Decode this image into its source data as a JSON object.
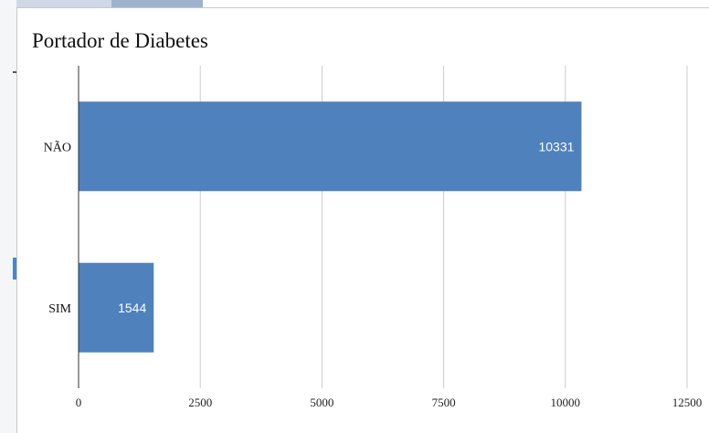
{
  "chart_data": {
    "type": "bar",
    "orientation": "horizontal",
    "title": "Portador de Diabetes",
    "categories": [
      "NÃO",
      "SIM"
    ],
    "values": [
      10331,
      1544
    ],
    "data_labels": [
      "10331",
      "1544"
    ],
    "xlim": [
      0,
      12500
    ],
    "x_ticks": [
      0,
      2500,
      5000,
      7500,
      10000,
      12500
    ],
    "x_tick_labels": [
      "0",
      "2500",
      "5000",
      "7500",
      "10000",
      "12500"
    ],
    "xlabel": "",
    "ylabel": "",
    "grid": "vertical",
    "bar_color": "#4f81bd",
    "label_color": "#ffffff"
  }
}
